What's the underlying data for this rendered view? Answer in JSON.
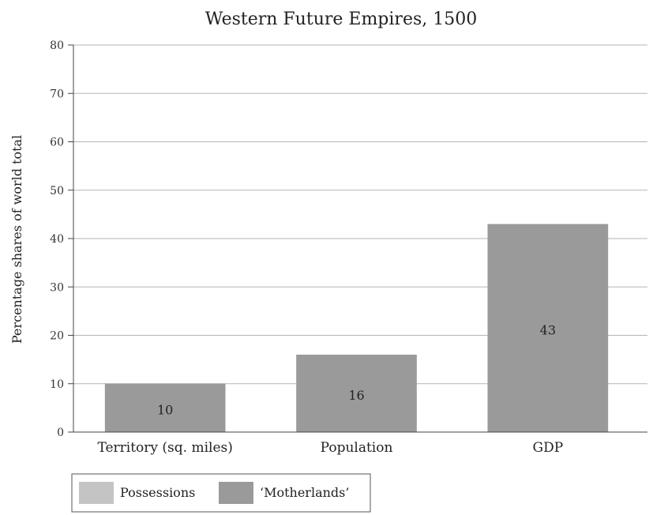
{
  "chart_data": {
    "type": "bar",
    "title": "Western Future Empires, 1500",
    "xlabel": "",
    "ylabel": "Percentage shares of world total",
    "ylim": [
      0,
      80
    ],
    "yticks": [
      0,
      10,
      20,
      30,
      40,
      50,
      60,
      70,
      80
    ],
    "grid": true,
    "categories": [
      "Territory (sq. miles)",
      "Population",
      "GDP"
    ],
    "series": [
      {
        "name": "Possessions",
        "values": [
          0,
          0,
          0
        ],
        "color": "#c4c4c4"
      },
      {
        "name": "‘Motherlands’",
        "values": [
          10,
          16,
          43
        ],
        "color": "#9a9a9a"
      }
    ],
    "data_labels": [
      "10",
      "16",
      "43"
    ],
    "legend": {
      "position": "bottom-left",
      "items": [
        {
          "label": "Possessions",
          "color": "#c4c4c4"
        },
        {
          "label": "‘Motherlands’",
          "color": "#9a9a9a"
        }
      ]
    }
  }
}
